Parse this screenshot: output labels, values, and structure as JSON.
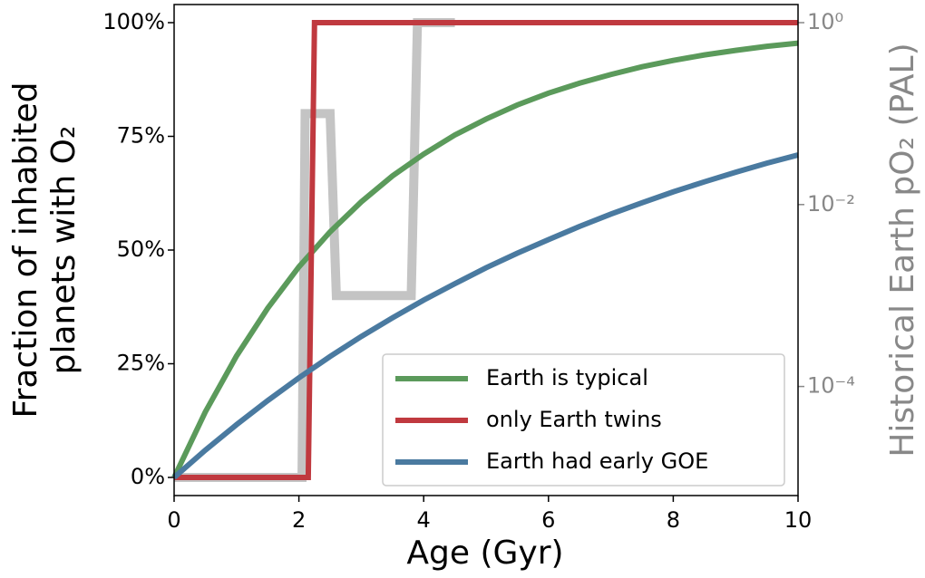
{
  "chart_data": {
    "type": "line",
    "xlabel": "Age (Gyr)",
    "ylabel": [
      "Fraction of inhabited",
      "planets with O₂"
    ],
    "y2label": "Historical Earth pO₂ (PAL)",
    "xlim": [
      0,
      10
    ],
    "xticks": [
      0,
      2,
      4,
      6,
      8,
      10
    ],
    "ylim": [
      0,
      100
    ],
    "yticks": [
      {
        "value": 0,
        "label": "0%"
      },
      {
        "value": 25,
        "label": "25%"
      },
      {
        "value": 50,
        "label": "50%"
      },
      {
        "value": 75,
        "label": "75%"
      },
      {
        "value": 100,
        "label": "100%"
      }
    ],
    "y2lim": [
      1e-05,
      1
    ],
    "y2scale": "log",
    "y2ticks": [
      {
        "value": 1,
        "label": "10⁰"
      },
      {
        "value": 0.01,
        "label": "10⁻²"
      },
      {
        "value": 0.0001,
        "label": "10⁻⁴"
      }
    ],
    "legend": "lower right",
    "series": [
      {
        "color": "#c4c4c4",
        "axis": "y2",
        "width": 10,
        "x": [
          0,
          2.05,
          2.1,
          2.5,
          2.6,
          3.8,
          3.9,
          4.5
        ],
        "values": [
          1e-05,
          1e-05,
          0.1,
          0.1,
          0.001,
          0.001,
          1,
          1
        ]
      },
      {
        "name": "Earth is typical",
        "color": "#5b9a5b",
        "width": 6,
        "x": [
          0,
          0.5,
          1,
          1.5,
          2,
          2.5,
          3,
          3.5,
          4,
          4.5,
          5,
          5.5,
          6,
          6.5,
          7,
          7.5,
          8,
          8.5,
          9,
          9.5,
          10
        ],
        "values": [
          0,
          14.4,
          26.7,
          37.2,
          46.3,
          54.0,
          60.6,
          66.3,
          71.1,
          75.3,
          78.8,
          81.9,
          84.5,
          86.7,
          88.6,
          90.3,
          91.7,
          92.9,
          93.9,
          94.8,
          95.5
        ]
      },
      {
        "name": "only Earth twins",
        "color": "#c0393f",
        "width": 6,
        "x": [
          0,
          2.15,
          2.25,
          10
        ],
        "values": [
          0,
          0,
          100,
          100
        ]
      },
      {
        "name": "Earth had early GOE",
        "color": "#4a7aa0",
        "width": 6,
        "x": [
          0,
          0.5,
          1,
          1.5,
          2,
          2.5,
          3,
          3.5,
          4,
          4.5,
          5,
          5.5,
          6,
          6.5,
          7,
          7.5,
          8,
          8.5,
          9,
          9.5,
          10
        ],
        "values": [
          0,
          6.0,
          11.6,
          16.9,
          21.9,
          26.6,
          31.0,
          35.1,
          39.0,
          42.6,
          46.1,
          49.3,
          52.3,
          55.2,
          57.9,
          60.4,
          62.8,
          65.0,
          67.1,
          69.1,
          70.9
        ]
      }
    ]
  }
}
